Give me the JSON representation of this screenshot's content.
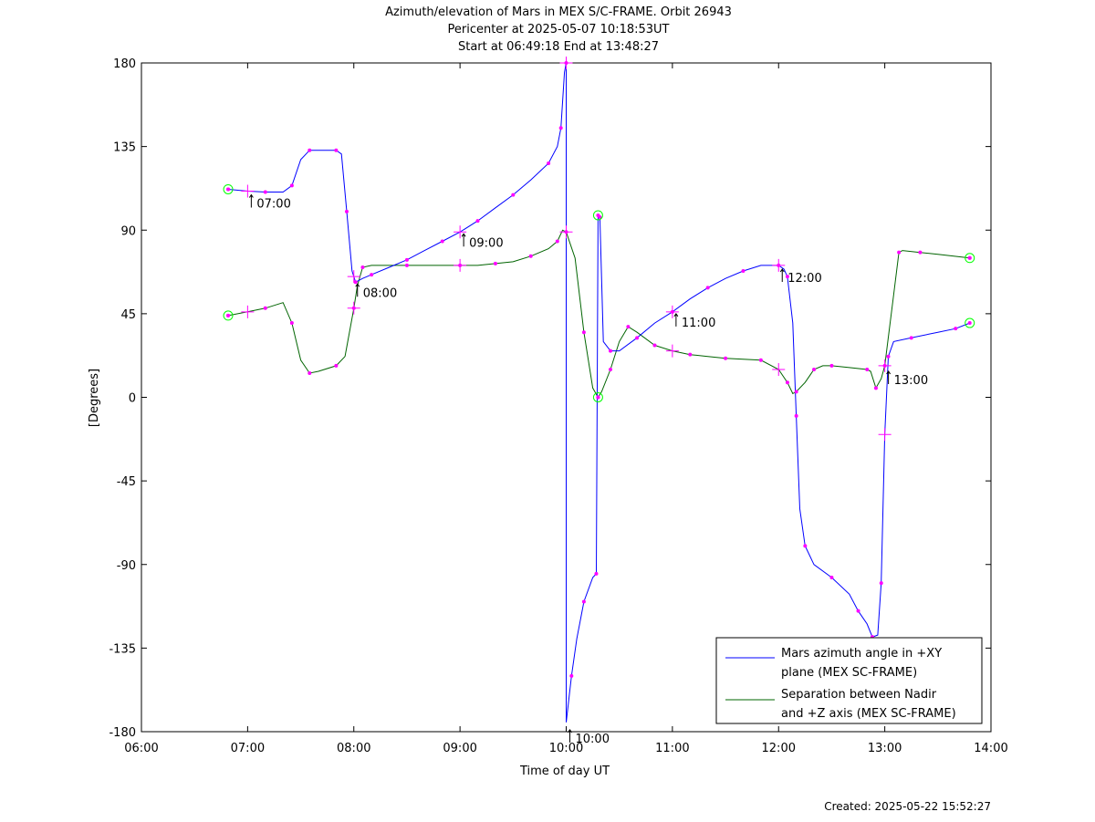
{
  "chart_data": {
    "type": "line",
    "title_lines": [
      "Azimuth/elevation of Mars in MEX S/C-FRAME.  Orbit 26943",
      "Pericenter at 2025-05-07 10:18:53UT",
      "Start at 06:49:18 End at 13:48:27"
    ],
    "xlabel": "Time of day UT",
    "ylabel": "[Degrees]",
    "xlim": [
      "06:00",
      "14:00"
    ],
    "ylim": [
      -180,
      180
    ],
    "x_ticks": [
      "06:00",
      "07:00",
      "08:00",
      "09:00",
      "10:00",
      "11:00",
      "12:00",
      "13:00",
      "14:00"
    ],
    "y_ticks": [
      "180",
      "135",
      "90",
      "45",
      "0",
      "-45",
      "-90",
      "-135",
      "-180"
    ],
    "legend_position": "bottom-right",
    "grid": false,
    "series": [
      {
        "name": "Mars azimuth angle in +XY plane (MEX SC-FRAME)",
        "legend_lines": [
          "Mars azimuth angle in +XY",
          "plane (MEX SC-FRAME)"
        ],
        "color": "#0000ff",
        "points": [
          [
            "06:49",
            112
          ],
          [
            "07:00",
            111
          ],
          [
            "07:10",
            110.5
          ],
          [
            "07:20",
            110.5
          ],
          [
            "07:25",
            114
          ],
          [
            "07:30",
            128
          ],
          [
            "07:35",
            133
          ],
          [
            "07:45",
            133
          ],
          [
            "07:50",
            133
          ],
          [
            "07:53",
            131
          ],
          [
            "07:56",
            100
          ],
          [
            "07:59",
            68
          ],
          [
            "08:01",
            62
          ],
          [
            "08:05",
            64
          ],
          [
            "08:10",
            66
          ],
          [
            "08:20",
            70
          ],
          [
            "08:30",
            74
          ],
          [
            "08:40",
            79
          ],
          [
            "08:50",
            84
          ],
          [
            "09:00",
            89
          ],
          [
            "09:10",
            95
          ],
          [
            "09:20",
            102
          ],
          [
            "09:30",
            109
          ],
          [
            "09:40",
            117
          ],
          [
            "09:50",
            126
          ],
          [
            "09:55",
            135
          ],
          [
            "09:57",
            145
          ],
          [
            "09:59",
            175
          ],
          [
            "10:00",
            180
          ],
          [
            "10:00",
            -175
          ],
          [
            "10:03",
            -150
          ],
          [
            "10:06",
            -130
          ],
          [
            "10:10",
            -110
          ],
          [
            "10:15",
            -97
          ],
          [
            "10:17",
            -95
          ],
          [
            "10:18",
            98
          ],
          [
            "10:19",
            97
          ],
          [
            "10:21",
            30
          ],
          [
            "10:25",
            25
          ],
          [
            "10:30",
            25
          ],
          [
            "10:40",
            32
          ],
          [
            "10:50",
            40
          ],
          [
            "11:00",
            46
          ],
          [
            "11:10",
            53
          ],
          [
            "11:20",
            59
          ],
          [
            "11:30",
            64
          ],
          [
            "11:40",
            68
          ],
          [
            "11:50",
            71
          ],
          [
            "12:00",
            71
          ],
          [
            "12:03",
            69
          ],
          [
            "12:05",
            65
          ],
          [
            "12:08",
            40
          ],
          [
            "12:10",
            -10
          ],
          [
            "12:12",
            -60
          ],
          [
            "12:15",
            -80
          ],
          [
            "12:20",
            -90
          ],
          [
            "12:30",
            -97
          ],
          [
            "12:40",
            -106
          ],
          [
            "12:45",
            -115
          ],
          [
            "12:50",
            -122
          ],
          [
            "12:53",
            -129
          ],
          [
            "12:56",
            -128
          ],
          [
            "12:58",
            -100
          ],
          [
            "13:00",
            -20
          ],
          [
            "13:02",
            22
          ],
          [
            "13:05",
            30
          ],
          [
            "13:15",
            32
          ],
          [
            "13:30",
            35
          ],
          [
            "13:40",
            37
          ],
          [
            "13:48",
            40
          ]
        ]
      },
      {
        "name": "Separation between Nadir and +Z axis (MEX SC-FRAME)",
        "legend_lines": [
          "Separation between Nadir",
          "and +Z axis (MEX SC-FRAME)"
        ],
        "color": "#006400",
        "points": [
          [
            "06:49",
            44
          ],
          [
            "07:00",
            46
          ],
          [
            "07:10",
            48
          ],
          [
            "07:20",
            51
          ],
          [
            "07:25",
            40
          ],
          [
            "07:30",
            20
          ],
          [
            "07:35",
            13
          ],
          [
            "07:40",
            14
          ],
          [
            "07:50",
            17
          ],
          [
            "07:55",
            22
          ],
          [
            "08:00",
            48
          ],
          [
            "08:02",
            60
          ],
          [
            "08:05",
            70
          ],
          [
            "08:10",
            71
          ],
          [
            "08:30",
            71
          ],
          [
            "08:50",
            71
          ],
          [
            "09:00",
            71
          ],
          [
            "09:10",
            71
          ],
          [
            "09:20",
            72
          ],
          [
            "09:30",
            73
          ],
          [
            "09:40",
            76
          ],
          [
            "09:50",
            80
          ],
          [
            "09:55",
            84
          ],
          [
            "09:58",
            90
          ],
          [
            "10:00",
            89
          ],
          [
            "10:05",
            75
          ],
          [
            "10:10",
            35
          ],
          [
            "10:15",
            5
          ],
          [
            "10:18",
            0
          ],
          [
            "10:20",
            3
          ],
          [
            "10:25",
            15
          ],
          [
            "10:30",
            30
          ],
          [
            "10:35",
            38
          ],
          [
            "10:40",
            35
          ],
          [
            "10:50",
            28
          ],
          [
            "11:00",
            25
          ],
          [
            "11:10",
            23
          ],
          [
            "11:20",
            22
          ],
          [
            "11:30",
            21
          ],
          [
            "11:40",
            20.5
          ],
          [
            "11:50",
            20
          ],
          [
            "12:00",
            15
          ],
          [
            "12:05",
            8
          ],
          [
            "12:08",
            2
          ],
          [
            "12:10",
            3
          ],
          [
            "12:15",
            8
          ],
          [
            "12:20",
            15
          ],
          [
            "12:25",
            17
          ],
          [
            "12:30",
            17
          ],
          [
            "12:40",
            16
          ],
          [
            "12:50",
            15
          ],
          [
            "12:52",
            14
          ],
          [
            "12:55",
            5
          ],
          [
            "12:58",
            10
          ],
          [
            "13:00",
            17
          ],
          [
            "13:05",
            55
          ],
          [
            "13:08",
            78
          ],
          [
            "13:10",
            79
          ],
          [
            "13:20",
            78
          ],
          [
            "13:30",
            77
          ],
          [
            "13:48",
            75
          ]
        ]
      }
    ],
    "marker_times": [
      "07:00",
      "08:00",
      "09:00",
      "10:00",
      "11:00",
      "12:00",
      "13:00"
    ],
    "time_labels": [
      {
        "text": "07:00",
        "at": "07:00",
        "value": 110
      },
      {
        "text": "08:00",
        "at": "08:00",
        "value": 62
      },
      {
        "text": "09:00",
        "at": "09:00",
        "value": 89
      },
      {
        "text": "10:00",
        "at": "10:00",
        "value": -178
      },
      {
        "text": "11:00",
        "at": "11:00",
        "value": 46
      },
      {
        "text": "12:00",
        "at": "12:00",
        "value": 70
      },
      {
        "text": "13:00",
        "at": "13:00",
        "value": 15
      }
    ],
    "start_end_markers": [
      {
        "at": "06:49",
        "value": 112
      },
      {
        "at": "06:49",
        "value": 44
      },
      {
        "at": "10:18",
        "value": 98
      },
      {
        "at": "10:18",
        "value": 0
      },
      {
        "at": "13:48",
        "value": 40
      },
      {
        "at": "13:48",
        "value": 75
      }
    ],
    "colors": {
      "dot_marker": "#ff00ff",
      "endpoint_circle": "#00ff00"
    }
  },
  "footer": {
    "created": "Created: 2025-05-22 15:52:27"
  }
}
